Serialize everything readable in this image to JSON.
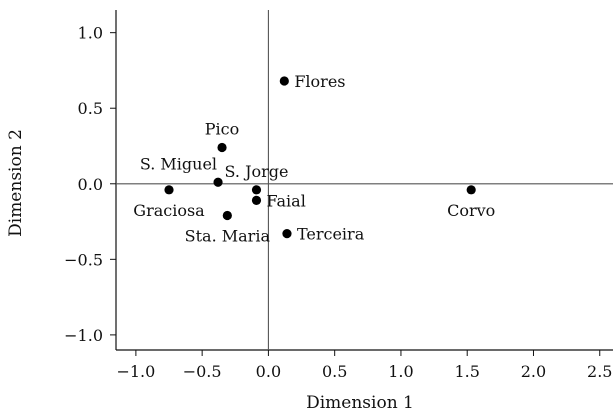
{
  "chart_data": {
    "type": "scatter",
    "title": "",
    "xlabel": "Dimension 1",
    "ylabel": "Dimension 2",
    "xlim": [
      -1.15,
      2.6
    ],
    "ylim": [
      -1.1,
      1.15
    ],
    "xticks": [
      -1.0,
      -0.5,
      0.0,
      0.5,
      1.0,
      1.5,
      2.0,
      2.5
    ],
    "xtick_labels": [
      "−1.0",
      "−0.5",
      "0.0",
      "0.5",
      "1.0",
      "1.5",
      "2.0",
      "2.5"
    ],
    "yticks": [
      1.0,
      0.5,
      0.0,
      -0.5,
      -1.0
    ],
    "ytick_labels": [
      "1.0",
      "0.5",
      "0.0",
      "−0.5",
      "−1.0"
    ],
    "reference_lines": {
      "x": 0,
      "y": 0
    },
    "grid": false,
    "legend": "none",
    "point_color": "#000000",
    "line_color": "#555555",
    "points": [
      {
        "label": "Flores",
        "x": 0.12,
        "y": 0.68,
        "label_pos": "right"
      },
      {
        "label": "Pico",
        "x": -0.35,
        "y": 0.24,
        "label_pos": "above"
      },
      {
        "label": "S. Miguel",
        "x": -0.38,
        "y": 0.01,
        "label_pos": "above-left"
      },
      {
        "label": "S. Jorge",
        "x": -0.09,
        "y": -0.04,
        "label_pos": "above"
      },
      {
        "label": "Faial",
        "x": -0.09,
        "y": -0.11,
        "label_pos": "right"
      },
      {
        "label": "Graciosa",
        "x": -0.75,
        "y": -0.04,
        "label_pos": "below"
      },
      {
        "label": "Sta. Maria",
        "x": -0.31,
        "y": -0.21,
        "label_pos": "below"
      },
      {
        "label": "Terceira",
        "x": 0.14,
        "y": -0.33,
        "label_pos": "right"
      },
      {
        "label": "Corvo",
        "x": 1.53,
        "y": -0.04,
        "label_pos": "below"
      }
    ]
  }
}
